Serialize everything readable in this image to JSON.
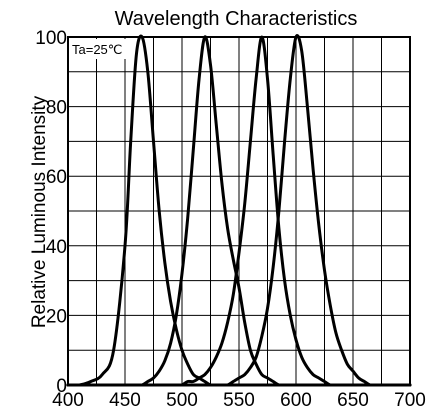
{
  "chart_data": {
    "type": "line",
    "title": "Wavelength Characteristics",
    "xlabel": "",
    "ylabel": "Relative Luminous Intensity",
    "annotation": "Ta=25℃",
    "xlim": [
      400,
      700
    ],
    "ylim": [
      0,
      100
    ],
    "x_ticks": [
      400,
      450,
      500,
      550,
      600,
      650,
      700
    ],
    "y_ticks": [
      0,
      20,
      40,
      60,
      80,
      100
    ],
    "grid": true,
    "x": [
      400,
      410,
      420,
      430,
      440,
      450,
      455,
      460,
      465,
      470,
      475,
      480,
      485,
      490,
      495,
      500,
      505,
      510,
      515,
      520,
      525,
      530,
      535,
      540,
      545,
      550,
      555,
      560,
      565,
      570,
      575,
      580,
      585,
      590,
      595,
      600,
      605,
      610,
      615,
      620,
      625,
      630,
      635,
      640,
      645,
      650,
      655,
      660,
      665,
      670,
      680,
      690,
      700
    ],
    "series": [
      {
        "values": [
          0,
          0,
          1,
          3,
          10,
          40,
          70,
          95,
          100,
          90,
          70,
          50,
          35,
          24,
          16,
          10,
          6,
          3,
          2,
          1,
          0,
          0,
          0,
          0,
          0,
          0,
          0,
          0,
          0,
          0,
          0,
          0,
          0,
          0,
          0,
          0,
          0,
          0,
          0,
          0,
          0,
          0,
          0,
          0,
          0,
          0,
          0,
          0,
          0,
          0,
          0,
          0,
          0
        ]
      },
      {
        "values": [
          0,
          0,
          0,
          0,
          0,
          0,
          0,
          0,
          0,
          1,
          2,
          4,
          7,
          12,
          20,
          32,
          48,
          68,
          88,
          100,
          92,
          75,
          58,
          45,
          36,
          28,
          18,
          10,
          6,
          3,
          2,
          1,
          0,
          0,
          0,
          0,
          0,
          0,
          0,
          0,
          0,
          0,
          0,
          0,
          0,
          0,
          0,
          0,
          0,
          0,
          0,
          0,
          0
        ]
      },
      {
        "values": [
          0,
          0,
          0,
          0,
          0,
          0,
          0,
          0,
          0,
          0,
          0,
          0,
          0,
          0,
          0,
          0,
          1,
          1,
          2,
          3,
          5,
          8,
          12,
          18,
          26,
          38,
          52,
          70,
          88,
          100,
          88,
          66,
          45,
          30,
          20,
          13,
          8,
          5,
          3,
          2,
          1,
          0,
          0,
          0,
          0,
          0,
          0,
          0,
          0,
          0,
          0,
          0,
          0
        ]
      },
      {
        "values": [
          0,
          0,
          0,
          0,
          0,
          0,
          0,
          0,
          0,
          0,
          0,
          0,
          0,
          0,
          0,
          0,
          0,
          0,
          0,
          0,
          0,
          0,
          0,
          0,
          1,
          2,
          3,
          5,
          8,
          14,
          22,
          34,
          50,
          70,
          88,
          100,
          96,
          80,
          62,
          46,
          33,
          23,
          15,
          10,
          6,
          4,
          2,
          1,
          0,
          0,
          0,
          0,
          0
        ]
      }
    ]
  }
}
